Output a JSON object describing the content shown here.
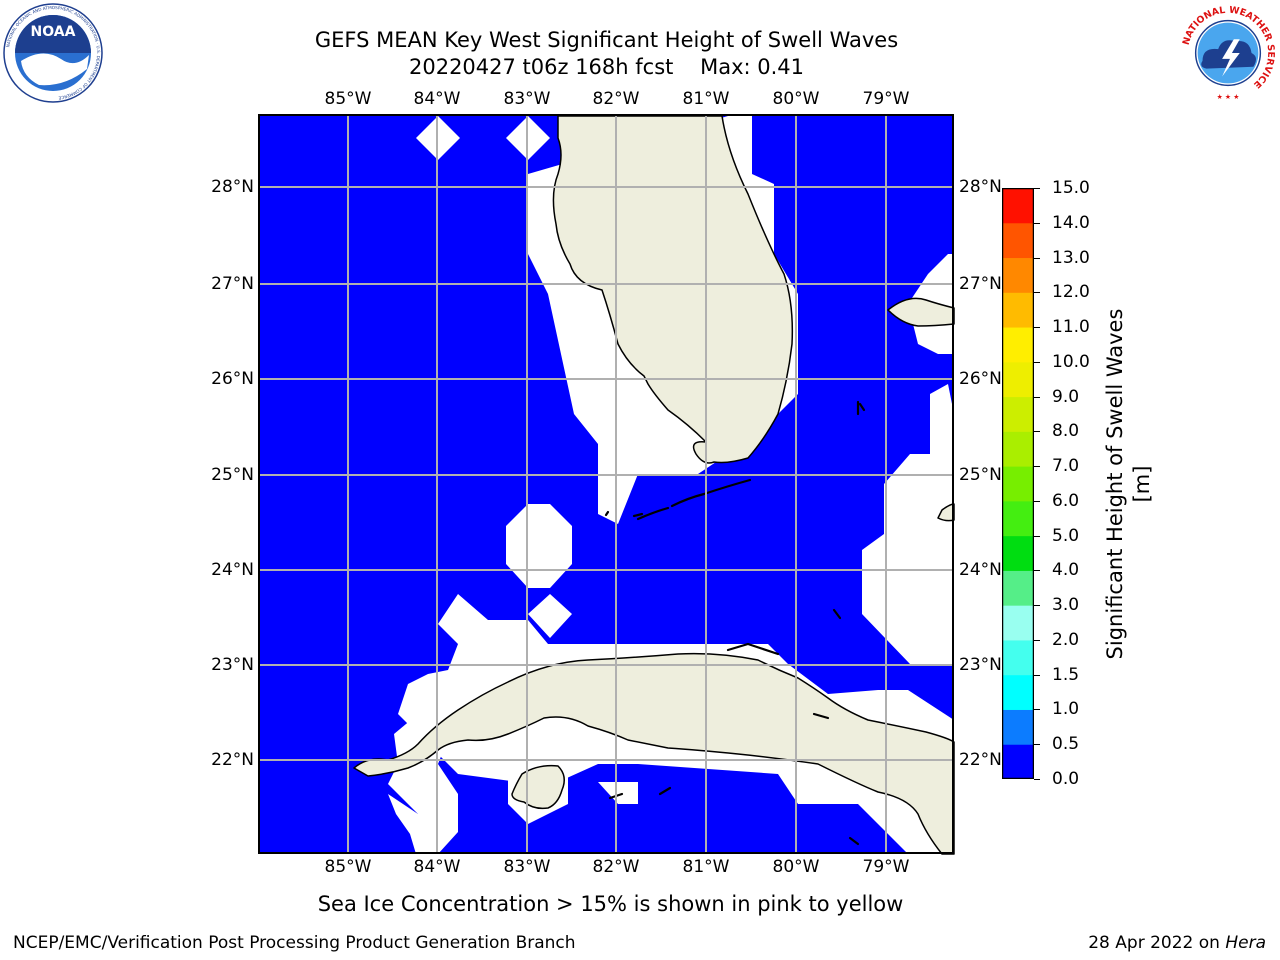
{
  "title": {
    "line1": "GEFS MEAN Key West Significant Height of Swell Waves",
    "line2": "20220427 t06z 168h fcst    Max: 0.41"
  },
  "logos": {
    "left": {
      "name": "NOAA",
      "ring_text": "NATIONAL OCEANIC AND ATMOSPHERIC ADMINISTRATION · U.S. DEPARTMENT OF COMMERCE"
    },
    "right": {
      "ring_text": "NATIONAL WEATHER SERVICE"
    }
  },
  "map": {
    "lon_labels": [
      "85°W",
      "84°W",
      "83°W",
      "82°W",
      "81°W",
      "80°W",
      "79°W"
    ],
    "lat_labels": [
      "28°N",
      "27°N",
      "26°N",
      "25°N",
      "24°N",
      "23°N",
      "22°N"
    ],
    "colors": {
      "ocean": "#0000ff",
      "land": "#eeeedd",
      "nodata": "#ffffff",
      "grid": "#b0b0b0",
      "coast": "#000000"
    }
  },
  "colorbar": {
    "ticks": [
      "15.0",
      "14.0",
      "13.0",
      "12.0",
      "11.0",
      "10.0",
      "9.0",
      "8.0",
      "7.0",
      "6.0",
      "5.0",
      "4.0",
      "3.0",
      "2.0",
      "1.5",
      "1.0",
      "0.5",
      "0.0"
    ],
    "label": "Significant Height of Swell Waves [m]",
    "colors": [
      "#0000ff",
      "#0c7cff",
      "#00ffff",
      "#33ffee",
      "#55ffee",
      "#99ffee",
      "#44ee88",
      "#00dd11",
      "#55ee11",
      "#88ee00",
      "#aaee00",
      "#ccee00",
      "#eeee00",
      "#ffee00",
      "#ffcc00",
      "#ffaa00",
      "#ff8800",
      "#ff6600",
      "#ff4400",
      "#ff2200",
      "#ff0000"
    ]
  },
  "ice_note": "Sea Ice Concentration > 15% is shown in pink to yellow",
  "footer": {
    "left": "NCEP/EMC/Verification Post Processing Product Generation Branch",
    "right_date": "28 Apr 2022 on ",
    "right_host": "Hera"
  }
}
